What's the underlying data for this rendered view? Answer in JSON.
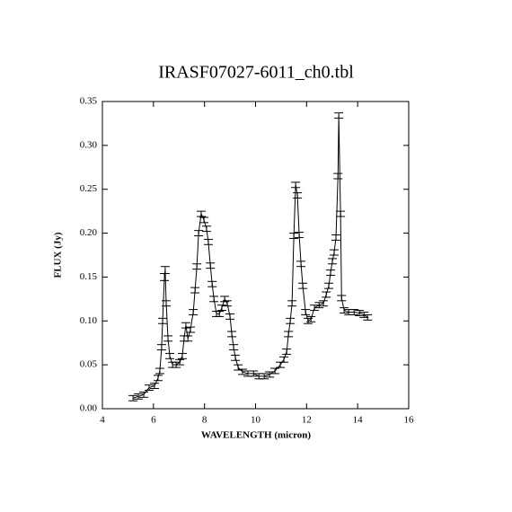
{
  "chart_data": {
    "type": "line",
    "title": "IRASF07027-6011_ch0.tbl",
    "x_label": "WAVELENGTH (micron)",
    "y_label": "FLUX (Jy)",
    "color": "#000000",
    "xlim": [
      4,
      16
    ],
    "xticks": [
      4,
      6,
      8,
      10,
      12,
      14,
      16
    ],
    "ylim": [
      0,
      0.35
    ],
    "yticks": [
      {
        "value": 0,
        "label": "0.00"
      },
      {
        "value": 0.05,
        "label": "0.05"
      },
      {
        "value": 0.1,
        "label": "0.10"
      },
      {
        "value": 0.15,
        "label": "0.15"
      },
      {
        "value": 0.2,
        "label": "0.20"
      },
      {
        "value": 0.25,
        "label": "0.25"
      },
      {
        "value": 0.3,
        "label": "0.30"
      },
      {
        "value": 0.35,
        "label": "0.35"
      }
    ],
    "x": [
      5.2,
      5.41,
      5.62,
      5.83,
      6.04,
      6.18,
      6.25,
      6.32,
      6.36,
      6.43,
      6.46,
      6.5,
      6.57,
      6.64,
      6.75,
      6.89,
      7.03,
      7.13,
      7.2,
      7.27,
      7.35,
      7.45,
      7.56,
      7.63,
      7.7,
      7.77,
      7.87,
      7.98,
      8.08,
      8.15,
      8.23,
      8.3,
      8.37,
      8.47,
      8.58,
      8.68,
      8.79,
      8.89,
      9.0,
      9.07,
      9.14,
      9.21,
      9.32,
      9.49,
      9.7,
      9.92,
      10.13,
      10.34,
      10.55,
      10.76,
      10.97,
      11.11,
      11.22,
      11.29,
      11.36,
      11.43,
      11.5,
      11.57,
      11.64,
      11.71,
      11.78,
      11.85,
      11.96,
      12.06,
      12.17,
      12.31,
      12.49,
      12.66,
      12.77,
      12.87,
      12.94,
      13.01,
      13.08,
      13.15,
      13.23,
      13.26,
      13.33,
      13.37,
      13.47,
      13.65,
      13.86,
      14.07,
      14.25,
      14.39
    ],
    "values": [
      0.012,
      0.014,
      0.016,
      0.024,
      0.026,
      0.035,
      0.043,
      0.07,
      0.1,
      0.15,
      0.158,
      0.12,
      0.08,
      0.06,
      0.05,
      0.05,
      0.053,
      0.06,
      0.08,
      0.095,
      0.08,
      0.09,
      0.11,
      0.135,
      0.162,
      0.2,
      0.222,
      0.215,
      0.205,
      0.19,
      0.163,
      0.142,
      0.125,
      0.108,
      0.108,
      0.115,
      0.125,
      0.12,
      0.105,
      0.085,
      0.07,
      0.058,
      0.047,
      0.042,
      0.04,
      0.04,
      0.037,
      0.037,
      0.039,
      0.043,
      0.05,
      0.056,
      0.065,
      0.085,
      0.1,
      0.12,
      0.197,
      0.255,
      0.243,
      0.198,
      0.165,
      0.14,
      0.11,
      0.1,
      0.102,
      0.115,
      0.118,
      0.12,
      0.13,
      0.14,
      0.155,
      0.168,
      0.178,
      0.195,
      0.265,
      0.334,
      0.222,
      0.126,
      0.112,
      0.11,
      0.11,
      0.109,
      0.107,
      0.104
    ],
    "errors": [
      0.003,
      0.003,
      0.003,
      0.003,
      0.003,
      0.003,
      0.003,
      0.003,
      0.003,
      0.004,
      0.004,
      0.003,
      0.003,
      0.003,
      0.003,
      0.003,
      0.003,
      0.003,
      0.003,
      0.003,
      0.003,
      0.003,
      0.003,
      0.003,
      0.003,
      0.003,
      0.003,
      0.003,
      0.003,
      0.003,
      0.003,
      0.003,
      0.003,
      0.003,
      0.003,
      0.003,
      0.003,
      0.003,
      0.003,
      0.003,
      0.003,
      0.003,
      0.003,
      0.003,
      0.003,
      0.003,
      0.003,
      0.003,
      0.003,
      0.003,
      0.003,
      0.003,
      0.003,
      0.003,
      0.003,
      0.003,
      0.003,
      0.003,
      0.003,
      0.003,
      0.003,
      0.003,
      0.003,
      0.003,
      0.003,
      0.003,
      0.003,
      0.003,
      0.003,
      0.003,
      0.003,
      0.003,
      0.003,
      0.003,
      0.003,
      0.003,
      0.003,
      0.003,
      0.003,
      0.003,
      0.003,
      0.003,
      0.003,
      0.003
    ]
  }
}
